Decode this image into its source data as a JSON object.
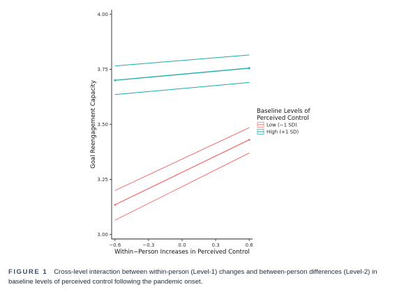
{
  "colors": {
    "low": "#f07070",
    "high": "#19aab0",
    "axis": "#222222",
    "text": "#111111"
  },
  "chart_data": {
    "type": "line",
    "xlabel": "Within−Person Increases in Perceived Control",
    "ylabel": "Goal Reengagement Capacity",
    "x_ticks": [
      -0.6,
      -0.3,
      0.0,
      0.3,
      0.6
    ],
    "x_tick_labels": [
      "−0.6",
      "−0.3",
      "0.0",
      "0.3",
      "0.6"
    ],
    "y_ticks": [
      3.0,
      3.25,
      3.5,
      3.75,
      4.0
    ],
    "y_tick_labels": [
      "3.00",
      "3.25",
      "3.50",
      "3.75",
      "4.00"
    ],
    "xlim": [
      -0.63,
      0.63
    ],
    "ylim": [
      2.98,
      4.02
    ],
    "grid": false,
    "legend": {
      "title_lines": [
        "Baseline Levels of",
        "Perceived Control"
      ],
      "position": "right"
    },
    "series": [
      {
        "name": "Low (−1 SD)",
        "color_key": "low",
        "x": [
          -0.6,
          0.6
        ],
        "values": [
          3.135,
          3.43
        ],
        "ci_upper": [
          3.2,
          3.485
        ],
        "ci_lower": [
          3.065,
          3.37
        ]
      },
      {
        "name": "High (+1 SD)",
        "color_key": "high",
        "x": [
          -0.6,
          0.6
        ],
        "values": [
          3.7,
          3.755
        ],
        "ci_upper": [
          3.765,
          3.815
        ],
        "ci_lower": [
          3.635,
          3.69
        ]
      }
    ]
  },
  "caption": {
    "label": "FIGURE 1",
    "text": "Cross-level interaction between within-person (Level-1) changes and between-person differences (Level-2) in baseline levels of perceived control following the pandemic onset."
  }
}
